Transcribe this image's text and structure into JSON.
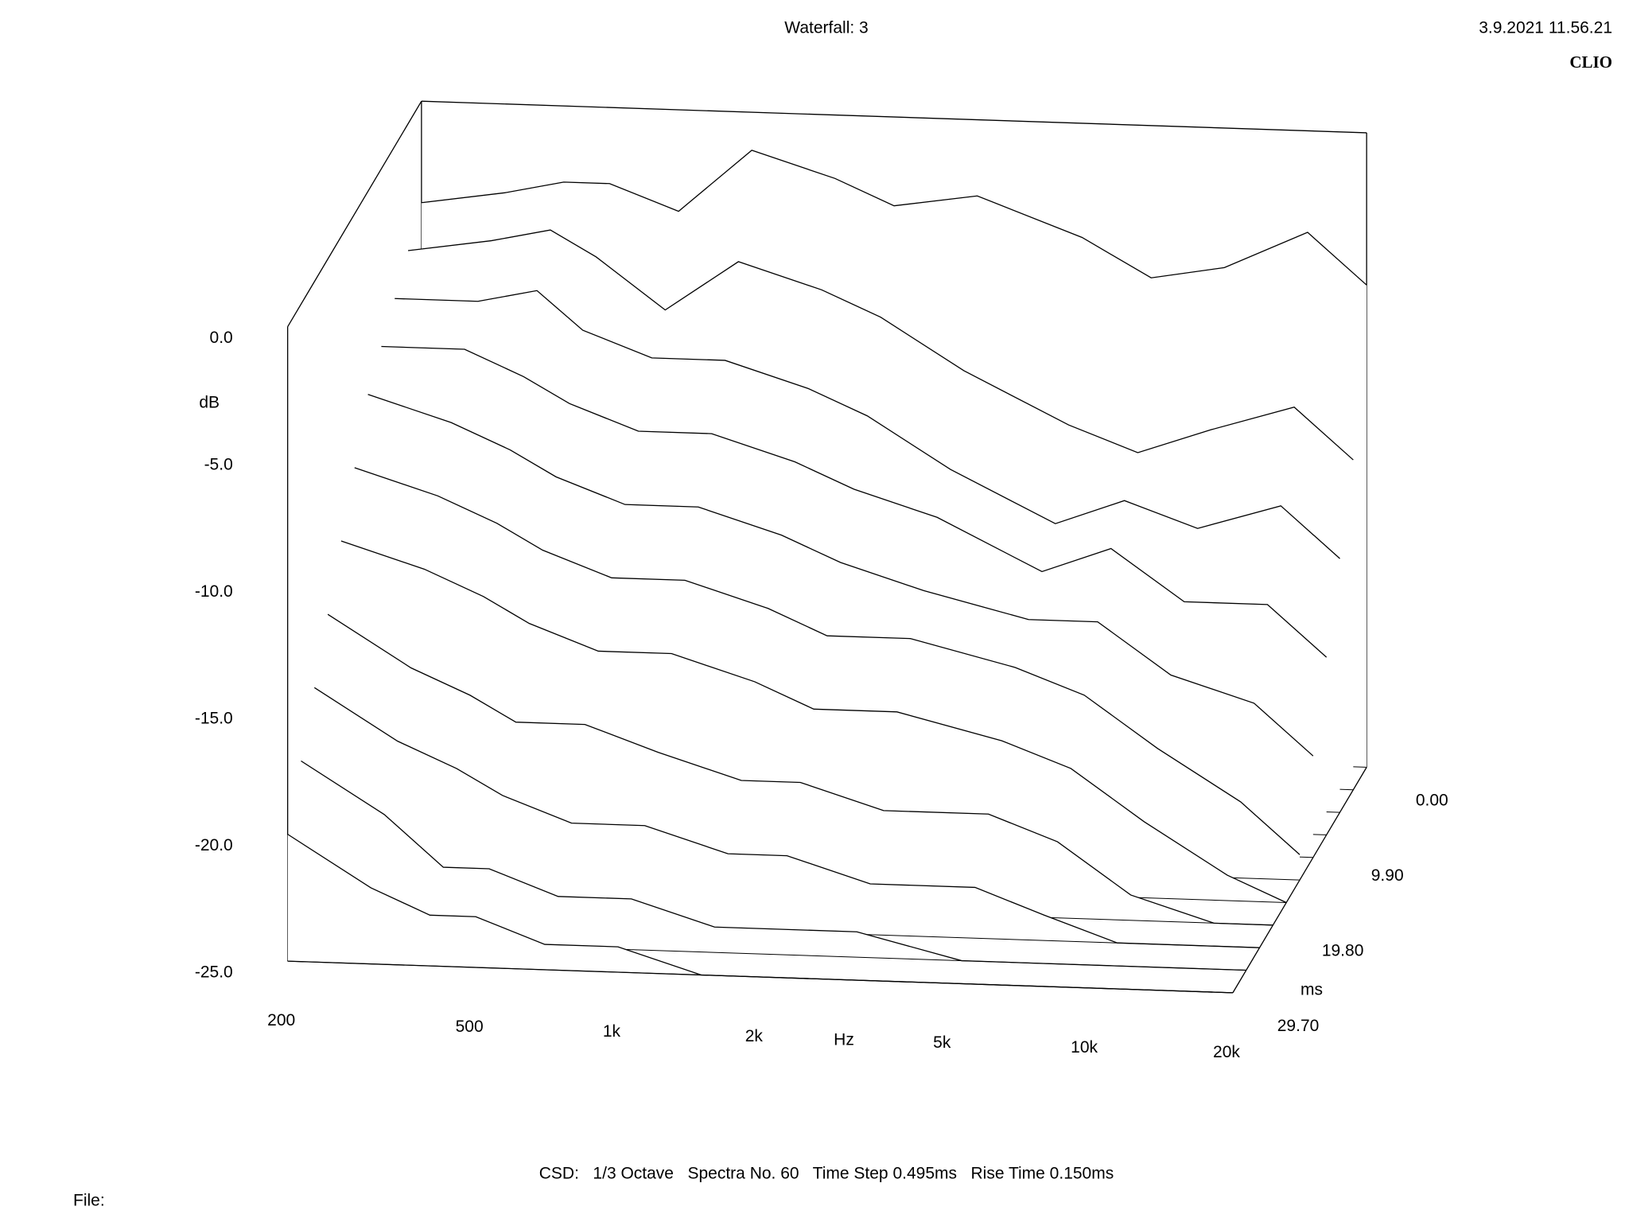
{
  "chart_data": {
    "type": "waterfall",
    "title": "Waterfall: 3",
    "timestamp": "3.9.2021 11.56.21",
    "brand": "CLIO",
    "footer": "CSD:   1/3 Octave   Spectra No. 60   Time Step 0.495ms   Rise Time 0.150ms",
    "file_label": "File:",
    "xlabel": "Hz",
    "ylabel": "dB",
    "zlabel": "ms",
    "log_x": true,
    "xlim": [
      200,
      20000
    ],
    "ylim": [
      -25,
      0
    ],
    "zlim": [
      0,
      29.7
    ],
    "xticks": [
      200,
      500,
      {
        "value": 1000,
        "label": "1k"
      },
      {
        "value": 2000,
        "label": "2k"
      },
      {
        "value": 5000,
        "label": "5k"
      },
      {
        "value": 10000,
        "label": "10k"
      },
      {
        "value": 20000,
        "label": "20k"
      }
    ],
    "yticks": [
      {
        "value": 0,
        "label": "0.0"
      },
      {
        "value": -5,
        "label": "-5.0"
      },
      {
        "value": -10,
        "label": "-10.0"
      },
      {
        "value": -15,
        "label": "-15.0"
      },
      {
        "value": -20,
        "label": "-20.0"
      },
      {
        "value": -25,
        "label": "-25.0"
      }
    ],
    "zticks": [
      {
        "value": 0,
        "label": "0.00"
      },
      {
        "value": 9.9,
        "label": "9.90"
      },
      {
        "value": 19.8,
        "label": "19.80"
      },
      {
        "value": 29.7,
        "label": "29.70"
      }
    ],
    "color": "#000000",
    "x": [
      200,
      300,
      400,
      500,
      700,
      1000,
      1500,
      2000,
      3000,
      5000,
      7000,
      10000,
      15000,
      20000
    ],
    "series": [
      {
        "t": 0,
        "values": [
          -4,
          -3.5,
          -3,
          -3,
          -4,
          -1.5,
          -2.5,
          -3.5,
          -3,
          -4.5,
          -6,
          -5.5,
          -4,
          -6
        ]
      },
      {
        "t": 2.97,
        "values": [
          -5,
          -4.5,
          -4,
          -5,
          -7,
          -5,
          -6,
          -7,
          -9,
          -11,
          -12,
          -11,
          -10,
          -12
        ]
      },
      {
        "t": 5.94,
        "values": [
          -6,
          -6,
          -5.5,
          -7,
          -8,
          -8,
          -9,
          -10,
          -12,
          -14,
          -13,
          -14,
          -13,
          -15
        ]
      },
      {
        "t": 8.91,
        "values": [
          -7,
          -7,
          -8,
          -9,
          -10,
          -10,
          -11,
          -12,
          -13,
          -15,
          -14,
          -16,
          -16,
          -18
        ]
      },
      {
        "t": 11.88,
        "values": [
          -8,
          -9,
          -10,
          -11,
          -12,
          -12,
          -13,
          -14,
          -15,
          -16,
          -16,
          -18,
          -19,
          -21
        ]
      },
      {
        "t": 14.85,
        "values": [
          -10,
          -11,
          -12,
          -13,
          -14,
          -14,
          -15,
          -16,
          -16,
          -17,
          -18,
          -20,
          -22,
          -24
        ]
      },
      {
        "t": 17.82,
        "values": [
          -12,
          -13,
          -14,
          -15,
          -16,
          -16,
          -17,
          -18,
          -18,
          -19,
          -20,
          -22,
          -24,
          -25
        ]
      },
      {
        "t": 20.79,
        "values": [
          -14,
          -16,
          -17,
          -18,
          -18,
          -19,
          -20,
          -20,
          -21,
          -21,
          -22,
          -24,
          -25,
          -25
        ]
      },
      {
        "t": 23.76,
        "values": [
          -16,
          -18,
          -19,
          -20,
          -21,
          -21,
          -22,
          -22,
          -23,
          -23,
          -24,
          -25,
          -25,
          -25
        ]
      },
      {
        "t": 26.73,
        "values": [
          -18,
          -20,
          -22,
          -22,
          -23,
          -23,
          -24,
          -24,
          -24,
          -25,
          -25,
          -25,
          -25,
          -25
        ]
      },
      {
        "t": 29.7,
        "values": [
          -20,
          -22,
          -23,
          -23,
          -24,
          -24,
          -25,
          -25,
          -25,
          -25,
          -25,
          -25,
          -25,
          -25
        ]
      }
    ]
  }
}
